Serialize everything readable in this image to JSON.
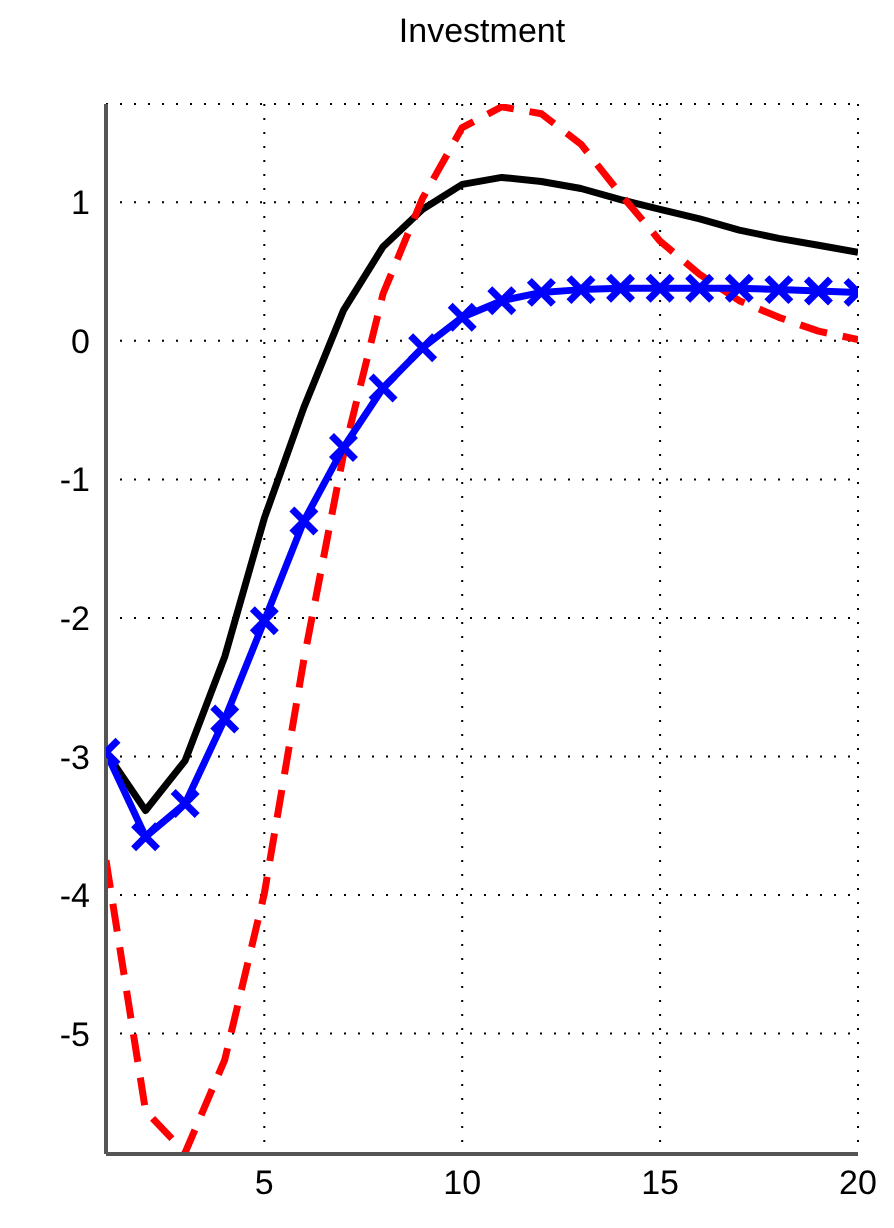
{
  "chart_data": {
    "type": "line",
    "title": "Investment",
    "x": [
      1,
      2,
      3,
      4,
      5,
      6,
      7,
      8,
      9,
      10,
      11,
      12,
      13,
      14,
      15,
      16,
      17,
      18,
      19,
      20
    ],
    "series": [
      {
        "color": "#000000",
        "line_style": "solid",
        "marker": "none",
        "values": [
          -2.97,
          -3.39,
          -3.03,
          -2.28,
          -1.28,
          -0.48,
          0.22,
          0.68,
          0.95,
          1.13,
          1.18,
          1.15,
          1.1,
          1.02,
          0.95,
          0.88,
          0.8,
          0.74,
          0.69,
          0.64
        ]
      },
      {
        "color": "#ff0000",
        "line_style": "dashed",
        "marker": "none",
        "values": [
          -3.75,
          -5.56,
          -5.86,
          -5.19,
          -3.99,
          -2.3,
          -0.82,
          0.34,
          1.03,
          1.54,
          1.69,
          1.64,
          1.42,
          1.06,
          0.72,
          0.48,
          0.29,
          0.17,
          0.07,
          0.01
        ]
      },
      {
        "color": "#0000ff",
        "line_style": "solid",
        "marker": "cross",
        "values": [
          -2.97,
          -3.58,
          -3.34,
          -2.73,
          -2.02,
          -1.3,
          -0.77,
          -0.34,
          -0.05,
          0.17,
          0.29,
          0.35,
          0.37,
          0.38,
          0.38,
          0.38,
          0.38,
          0.37,
          0.36,
          0.35
        ]
      }
    ],
    "xlim": [
      1,
      20
    ],
    "xticks": [
      5,
      10,
      15,
      20
    ],
    "ylim": [
      -5.87,
      1.71
    ],
    "yticks": [
      -5,
      -4,
      -3,
      -2,
      -1,
      0,
      1
    ],
    "grid": true,
    "legend": false
  }
}
